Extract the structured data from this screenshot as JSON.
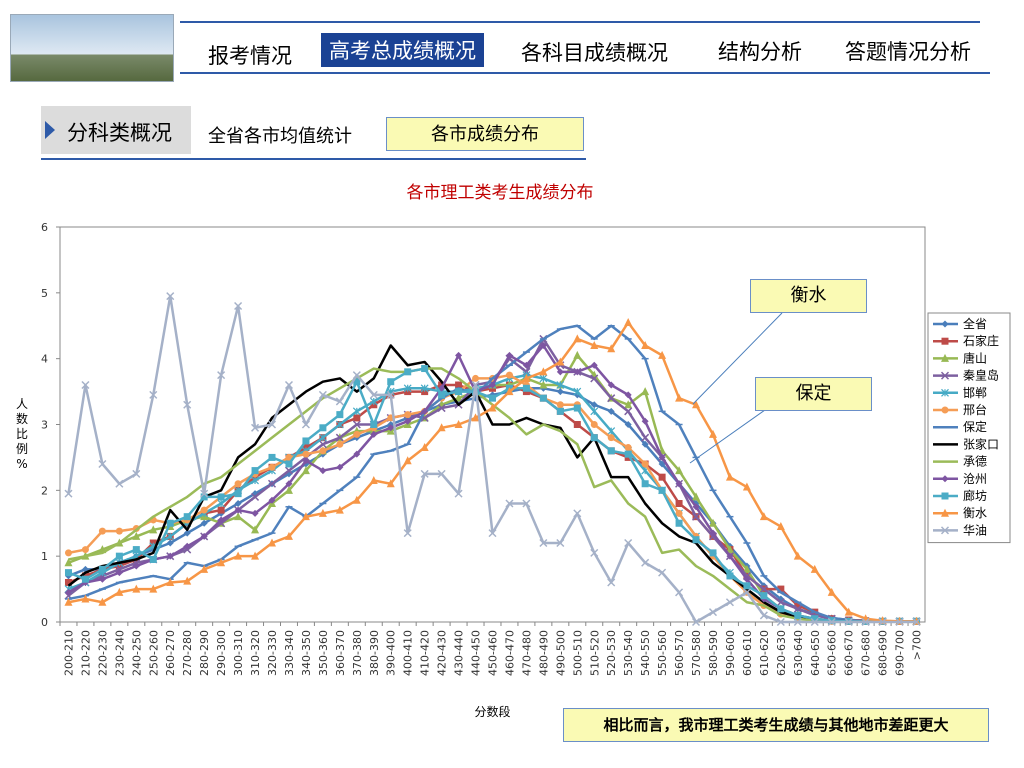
{
  "nav": {
    "tabs": [
      {
        "label": "报考情况"
      },
      {
        "label": "高考总成绩概况",
        "active": true
      },
      {
        "label": "各科目成绩概况"
      },
      {
        "label": "结构分析"
      },
      {
        "label": "答题情况分析"
      }
    ],
    "accent": "#1b4294"
  },
  "subnav": {
    "section": "分科类概况",
    "link": "全省各市均值统计",
    "button": "各市成绩分布"
  },
  "callouts": {
    "a": "衡水",
    "b": "保定"
  },
  "note": "相比而言，我市理工类考生成绩与其他地市差距更大",
  "chart_data": {
    "type": "line",
    "title": "各市理工类考生成绩分布",
    "xlabel": "分数段",
    "ylabel": "人数比例%",
    "ylim": [
      0,
      6
    ],
    "yticks": [
      0,
      1,
      2,
      3,
      4,
      5,
      6
    ],
    "grid": false,
    "legend_position": "right",
    "categories": [
      "200-210",
      "210-220",
      "220-230",
      "230-240",
      "240-250",
      "250-260",
      "260-270",
      "270-280",
      "280-290",
      "290-300",
      "300-310",
      "310-320",
      "320-330",
      "330-340",
      "340-350",
      "350-360",
      "360-370",
      "370-380",
      "380-390",
      "390-400",
      "400-410",
      "410-420",
      "420-430",
      "430-440",
      "440-450",
      "450-460",
      "460-470",
      "470-480",
      "480-490",
      "490-500",
      "500-510",
      "510-520",
      "520-530",
      "530-540",
      "540-550",
      "550-560",
      "560-570",
      "570-580",
      "580-590",
      "590-600",
      "600-610",
      "610-620",
      "620-630",
      "630-640",
      "640-650",
      "650-660",
      "660-670",
      "670-680",
      "680-690",
      "690-700",
      ">700"
    ],
    "series": [
      {
        "name": "全省",
        "color": "#4a7ebb",
        "marker": "diamond",
        "values": [
          0.7,
          0.8,
          0.8,
          0.9,
          1.0,
          1.1,
          1.2,
          1.35,
          1.5,
          1.65,
          1.8,
          1.95,
          2.1,
          2.25,
          2.4,
          2.55,
          2.7,
          2.8,
          2.9,
          3.0,
          3.1,
          3.2,
          3.3,
          3.35,
          3.4,
          3.45,
          3.5,
          3.55,
          3.55,
          3.5,
          3.45,
          3.3,
          3.2,
          3.0,
          2.7,
          2.4,
          2.1,
          1.8,
          1.5,
          1.15,
          0.85,
          0.55,
          0.35,
          0.2,
          0.12,
          0.06,
          0.03,
          0.02,
          0.01,
          0.01,
          0.01
        ]
      },
      {
        "name": "石家庄",
        "color": "#be4b48",
        "marker": "square",
        "values": [
          0.6,
          0.7,
          0.8,
          0.85,
          0.95,
          1.2,
          1.3,
          1.5,
          1.65,
          1.7,
          2.0,
          2.2,
          2.35,
          2.5,
          2.65,
          2.8,
          3.0,
          3.1,
          3.3,
          3.45,
          3.5,
          3.5,
          3.6,
          3.6,
          3.5,
          3.55,
          3.6,
          3.5,
          3.4,
          3.2,
          3.0,
          2.8,
          2.6,
          2.5,
          2.4,
          2.2,
          1.8,
          1.6,
          1.3,
          1.1,
          0.7,
          0.5,
          0.5,
          0.25,
          0.15,
          0.05,
          0.03,
          0.02,
          0.01,
          0.01,
          0.01
        ]
      },
      {
        "name": "唐山",
        "color": "#98b954",
        "marker": "triangle",
        "values": [
          0.9,
          1.0,
          1.1,
          1.2,
          1.3,
          1.4,
          1.45,
          1.55,
          1.6,
          1.5,
          1.6,
          1.4,
          1.8,
          2.0,
          2.3,
          2.6,
          2.8,
          2.9,
          2.9,
          2.9,
          3.0,
          3.1,
          3.3,
          3.4,
          3.5,
          3.6,
          3.6,
          3.7,
          3.6,
          3.6,
          4.05,
          3.75,
          3.4,
          3.3,
          3.5,
          2.6,
          2.3,
          1.9,
          1.5,
          1.1,
          0.8,
          0.4,
          0.2,
          0.1,
          0.05,
          0.02,
          0.01,
          0.01,
          0.01,
          0.01,
          0.01
        ]
      },
      {
        "name": "秦皇岛",
        "color": "#7d60a0",
        "marker": "x",
        "values": [
          0.4,
          0.6,
          0.7,
          0.8,
          0.9,
          0.95,
          1.0,
          1.1,
          1.3,
          1.5,
          1.7,
          1.9,
          2.1,
          2.3,
          2.5,
          2.7,
          2.8,
          3.0,
          3.0,
          3.1,
          3.15,
          3.1,
          3.25,
          3.3,
          3.6,
          3.65,
          4.0,
          3.8,
          4.3,
          3.9,
          3.8,
          3.7,
          3.4,
          3.2,
          2.8,
          2.5,
          2.1,
          1.6,
          1.3,
          1.0,
          0.7,
          0.5,
          0.3,
          0.2,
          0.1,
          0.05,
          0.02,
          0.01,
          0.01,
          0.01,
          0.01
        ]
      },
      {
        "name": "邯郸",
        "color": "#46aac5",
        "marker": "asterisk",
        "values": [
          0.5,
          0.6,
          0.75,
          0.9,
          1.0,
          1.15,
          1.3,
          1.5,
          1.65,
          1.8,
          2.0,
          2.15,
          2.3,
          2.5,
          2.6,
          2.8,
          3.0,
          3.2,
          3.35,
          3.5,
          3.55,
          3.55,
          3.5,
          3.5,
          3.55,
          3.6,
          3.7,
          3.75,
          3.7,
          3.6,
          3.5,
          3.2,
          2.9,
          2.6,
          2.3,
          2.0,
          1.65,
          1.3,
          1.0,
          0.75,
          0.5,
          0.3,
          0.15,
          0.08,
          0.04,
          0.02,
          0.01,
          0.01,
          0.01,
          0.01,
          0.01
        ]
      },
      {
        "name": "邢台",
        "color": "#f59d56",
        "marker": "circle",
        "values": [
          1.05,
          1.1,
          1.38,
          1.38,
          1.42,
          1.55,
          1.5,
          1.55,
          1.7,
          1.9,
          2.1,
          2.25,
          2.35,
          2.5,
          2.55,
          2.6,
          2.7,
          2.85,
          2.95,
          3.1,
          3.15,
          3.2,
          3.4,
          3.5,
          3.7,
          3.7,
          3.75,
          3.6,
          3.4,
          3.3,
          3.3,
          3.0,
          2.8,
          2.65,
          2.4,
          2.0,
          1.65,
          1.3,
          1.0,
          0.7,
          0.45,
          0.25,
          0.12,
          0.06,
          0.03,
          0.01,
          0.01,
          0.01,
          0.01,
          0.01,
          0.01
        ]
      },
      {
        "name": "保定",
        "color": "#4f81bd",
        "marker": "plus",
        "values": [
          0.35,
          0.4,
          0.5,
          0.6,
          0.65,
          0.7,
          0.65,
          0.9,
          0.85,
          0.95,
          1.15,
          1.25,
          1.35,
          1.75,
          1.6,
          1.8,
          2.0,
          2.2,
          2.55,
          2.6,
          2.7,
          3.2,
          3.4,
          3.55,
          3.45,
          3.7,
          3.9,
          4.1,
          4.3,
          4.45,
          4.5,
          4.3,
          4.5,
          4.3,
          4.0,
          3.2,
          3.0,
          2.5,
          2.0,
          1.6,
          1.2,
          0.7,
          0.45,
          0.3,
          0.15,
          0.06,
          0.03,
          0.01,
          0.01,
          0.01,
          0.01
        ]
      },
      {
        "name": "张家口",
        "color": "#000000",
        "marker": "none",
        "values": [
          0.55,
          0.75,
          0.85,
          0.9,
          0.95,
          1.05,
          1.7,
          1.4,
          1.9,
          2.0,
          2.5,
          2.7,
          3.1,
          3.3,
          3.5,
          3.65,
          3.7,
          3.5,
          3.7,
          4.2,
          3.9,
          3.95,
          3.65,
          3.3,
          3.5,
          3.0,
          3.0,
          3.1,
          3.0,
          2.95,
          2.5,
          2.8,
          2.2,
          2.2,
          1.8,
          1.5,
          1.3,
          1.2,
          0.9,
          0.7,
          0.5,
          0.3,
          0.15,
          0.08,
          0.04,
          0.02,
          0.01,
          0.01,
          0.01,
          0.01,
          0.01
        ]
      },
      {
        "name": "承德",
        "color": "#9bbb59",
        "marker": "none",
        "values": [
          0.95,
          1.0,
          1.05,
          1.2,
          1.4,
          1.6,
          1.75,
          1.9,
          2.1,
          2.2,
          2.4,
          2.6,
          2.8,
          3.0,
          3.2,
          3.4,
          3.55,
          3.7,
          3.85,
          3.8,
          3.8,
          3.85,
          3.85,
          3.7,
          3.5,
          3.3,
          3.1,
          2.85,
          3.0,
          2.9,
          2.7,
          2.05,
          2.15,
          1.8,
          1.6,
          1.05,
          1.1,
          0.85,
          0.7,
          0.5,
          0.3,
          0.25,
          0.1,
          0.05,
          0.02,
          0.01,
          0.01,
          0.01,
          0.01,
          0.01,
          0.01
        ]
      },
      {
        "name": "沧州",
        "color": "#7e55a2",
        "marker": "diamond",
        "values": [
          0.45,
          0.6,
          0.65,
          0.75,
          0.85,
          0.95,
          1.0,
          1.15,
          1.3,
          1.55,
          1.7,
          1.65,
          1.85,
          2.1,
          2.45,
          2.3,
          2.35,
          2.55,
          2.85,
          2.95,
          3.05,
          3.2,
          3.55,
          4.05,
          3.5,
          3.6,
          4.05,
          3.9,
          4.2,
          3.8,
          3.8,
          3.9,
          3.6,
          3.45,
          3.05,
          2.5,
          2.1,
          1.75,
          1.35,
          1.0,
          0.65,
          0.35,
          0.2,
          0.1,
          0.05,
          0.02,
          0.01,
          0.01,
          0.01,
          0.01,
          0.01
        ]
      },
      {
        "name": "廊坊",
        "color": "#4bacc6",
        "marker": "square",
        "values": [
          0.75,
          0.65,
          0.8,
          1.0,
          1.1,
          0.95,
          1.5,
          1.6,
          1.9,
          1.9,
          1.95,
          2.3,
          2.5,
          2.4,
          2.75,
          2.95,
          3.15,
          3.65,
          3.0,
          3.65,
          3.8,
          3.85,
          3.45,
          3.5,
          3.5,
          3.4,
          3.55,
          3.55,
          3.4,
          3.2,
          3.25,
          2.8,
          2.6,
          2.55,
          2.1,
          2.0,
          1.5,
          1.25,
          1.05,
          0.7,
          0.55,
          0.4,
          0.2,
          0.1,
          0.05,
          0.02,
          0.01,
          0.01,
          0.01,
          0.01,
          0.01
        ]
      },
      {
        "name": "衡水",
        "color": "#f79646",
        "marker": "triangle",
        "values": [
          0.3,
          0.35,
          0.3,
          0.45,
          0.5,
          0.5,
          0.6,
          0.62,
          0.8,
          0.9,
          1.0,
          1.0,
          1.2,
          1.3,
          1.6,
          1.65,
          1.7,
          1.85,
          2.15,
          2.1,
          2.45,
          2.65,
          2.95,
          3.0,
          3.1,
          3.25,
          3.5,
          3.7,
          3.8,
          3.95,
          4.3,
          4.2,
          4.15,
          4.55,
          4.2,
          4.05,
          3.4,
          3.3,
          2.85,
          2.2,
          2.05,
          1.6,
          1.45,
          1.0,
          0.8,
          0.45,
          0.15,
          0.05,
          0.02,
          0.01,
          0.01
        ]
      },
      {
        "name": "华油",
        "color": "#a5b1c8",
        "marker": "x",
        "values": [
          1.95,
          3.6,
          2.4,
          2.1,
          2.25,
          3.45,
          4.95,
          3.3,
          1.95,
          3.75,
          4.8,
          2.95,
          3.0,
          3.6,
          3.0,
          3.45,
          3.35,
          3.75,
          3.45,
          3.45,
          1.35,
          2.25,
          2.25,
          1.95,
          3.6,
          1.35,
          1.8,
          1.8,
          1.2,
          1.2,
          1.65,
          1.05,
          0.6,
          1.2,
          0.9,
          0.75,
          0.45,
          0.0,
          0.15,
          0.3,
          0.45,
          0.1,
          0.0,
          0.0,
          0.0,
          0.0,
          0.0,
          0.0,
          0.0,
          0.0,
          0.0
        ]
      }
    ]
  }
}
